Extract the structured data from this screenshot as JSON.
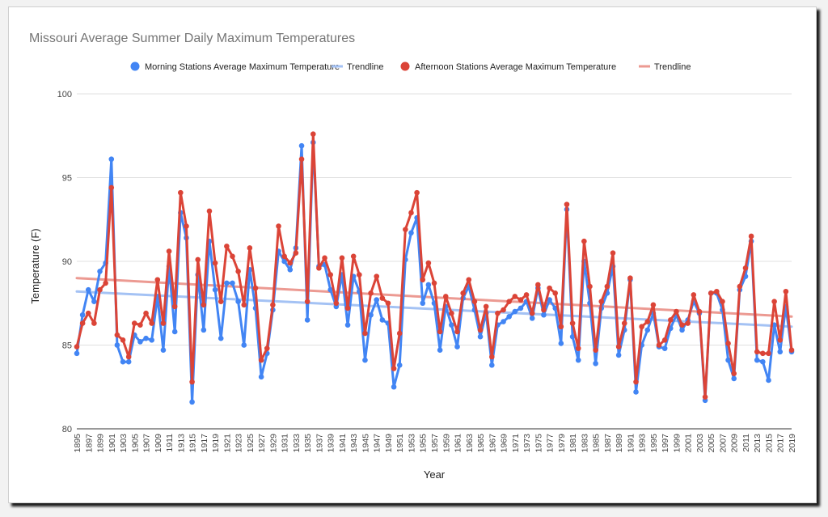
{
  "chart_data": {
    "type": "line",
    "title": "Missouri Average Summer Daily Maximum Temperatures",
    "xlabel": "Year",
    "ylabel": "Temperature (F)",
    "ylim": [
      80,
      100
    ],
    "yticks": [
      80,
      85,
      90,
      95,
      100
    ],
    "xlim": [
      1895,
      2019
    ],
    "xticks": [
      1895,
      1897,
      1899,
      1901,
      1903,
      1905,
      1907,
      1909,
      1911,
      1913,
      1915,
      1917,
      1919,
      1921,
      1923,
      1925,
      1927,
      1929,
      1931,
      1933,
      1935,
      1937,
      1939,
      1941,
      1943,
      1945,
      1947,
      1949,
      1951,
      1953,
      1955,
      1957,
      1959,
      1961,
      1963,
      1965,
      1967,
      1969,
      1971,
      1973,
      1975,
      1977,
      1979,
      1981,
      1983,
      1985,
      1987,
      1989,
      1991,
      1993,
      1995,
      1997,
      1999,
      2001,
      2003,
      2005,
      2007,
      2009,
      2011,
      2013,
      2015,
      2017,
      2019
    ],
    "grid": true,
    "legend_position": "top",
    "legend": [
      {
        "label": "Morning Stations Average Maximum Temperature",
        "kind": "point",
        "color": "#4285f4"
      },
      {
        "label": "Trendline",
        "kind": "line",
        "color": "#a4c2f4"
      },
      {
        "label": "Afternoon Stations Average Maximum Temperature",
        "kind": "point",
        "color": "#db4437"
      },
      {
        "label": "Trendline",
        "kind": "line",
        "color": "#ec9a92"
      }
    ],
    "x_start": 1895,
    "series": [
      {
        "name": "Morning Stations Average Maximum Temperature",
        "color": "#4285f4",
        "values": [
          84.5,
          86.8,
          88.3,
          87.6,
          89.4,
          89.9,
          96.1,
          85.0,
          84.0,
          84.0,
          85.6,
          85.2,
          85.4,
          85.3,
          87.9,
          84.7,
          89.7,
          85.8,
          92.9,
          91.4,
          81.6,
          89.2,
          85.9,
          91.2,
          88.3,
          85.4,
          88.7,
          88.7,
          87.6,
          85.0,
          89.5,
          87.2,
          83.1,
          84.5,
          87.1,
          90.6,
          90.0,
          89.5,
          90.8,
          96.9,
          86.5,
          97.1,
          89.7,
          89.8,
          88.3,
          87.3,
          89.2,
          86.2,
          89.1,
          88.2,
          84.1,
          86.8,
          87.7,
          86.5,
          86.3,
          82.5,
          83.8,
          90.1,
          91.7,
          92.6,
          87.5,
          88.6,
          87.5,
          84.7,
          87.3,
          86.2,
          84.9,
          87.8,
          88.5,
          87.1,
          85.5,
          86.9,
          83.8,
          86.2,
          86.4,
          86.7,
          87.0,
          87.2,
          87.6,
          86.6,
          88.4,
          86.8,
          87.7,
          87.2,
          85.1,
          93.1,
          85.5,
          84.1,
          90.0,
          87.5,
          83.9,
          87.2,
          88.1,
          89.7,
          84.4,
          85.9,
          88.9,
          82.2,
          85.0,
          85.9,
          86.9,
          84.9,
          84.8,
          86.0,
          86.8,
          85.9,
          86.5,
          87.6,
          86.9,
          81.7,
          88.1,
          88.1,
          87.1,
          84.1,
          83.0,
          88.3,
          89.1,
          91.2,
          84.1,
          84.0,
          82.9,
          86.2,
          84.6,
          87.3,
          84.6
        ]
      },
      {
        "name": "Trendline",
        "color": "#a4c2f4",
        "trend": [
          88.2,
          86.1
        ]
      },
      {
        "name": "Afternoon Stations Average Maximum Temperature",
        "color": "#db4437",
        "values": [
          84.9,
          86.3,
          86.9,
          86.3,
          88.3,
          88.7,
          94.4,
          85.6,
          85.3,
          84.3,
          86.3,
          86.2,
          86.9,
          86.3,
          88.9,
          86.3,
          90.6,
          87.3,
          94.1,
          92.1,
          82.8,
          90.1,
          87.4,
          93.0,
          89.9,
          87.6,
          90.9,
          90.3,
          89.4,
          87.4,
          90.8,
          88.4,
          84.1,
          84.8,
          87.4,
          92.1,
          90.3,
          89.9,
          90.5,
          96.1,
          87.6,
          97.6,
          89.6,
          90.2,
          89.2,
          87.5,
          90.2,
          87.2,
          90.3,
          89.2,
          85.7,
          88.1,
          89.1,
          87.8,
          87.5,
          83.6,
          85.7,
          91.9,
          92.9,
          94.1,
          88.9,
          89.9,
          88.7,
          85.8,
          87.9,
          86.9,
          85.8,
          88.1,
          88.9,
          87.6,
          85.9,
          87.3,
          84.3,
          86.9,
          87.1,
          87.6,
          87.9,
          87.7,
          88.0,
          86.9,
          88.6,
          87.1,
          88.4,
          88.1,
          86.1,
          93.4,
          86.3,
          84.8,
          91.2,
          88.5,
          84.7,
          87.6,
          88.5,
          90.5,
          84.9,
          86.3,
          89.0,
          82.8,
          86.1,
          86.4,
          87.4,
          85.0,
          85.3,
          86.5,
          87.0,
          86.2,
          86.3,
          88.0,
          87.0,
          81.9,
          88.1,
          88.2,
          87.6,
          85.1,
          83.3,
          88.5,
          89.6,
          91.5,
          84.6,
          84.5,
          84.5,
          87.6,
          85.3,
          88.2,
          84.7
        ]
      },
      {
        "name": "Trendline",
        "color": "#ec9a92",
        "trend": [
          89.0,
          86.7
        ]
      }
    ]
  }
}
